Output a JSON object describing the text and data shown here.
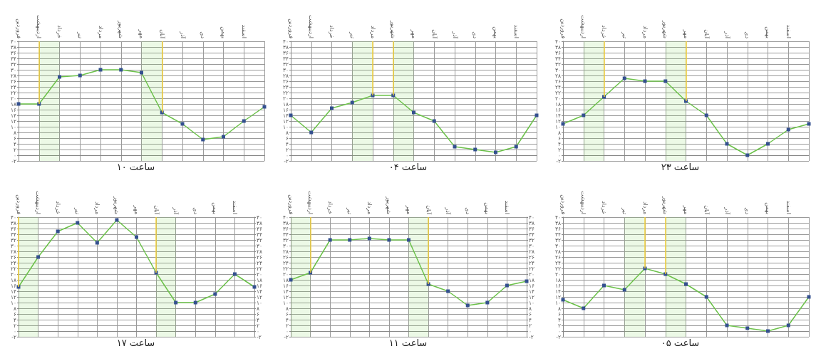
{
  "chart_data": [
    {
      "type": "line",
      "title": "ساعت ۱۰",
      "categories": [
        "فروردین",
        "اردیبهشت",
        "خرداد",
        "تیر",
        "مرداد",
        "شهریور",
        "مهر",
        "آبان",
        "آذر",
        "دی",
        "بهمن",
        "اسفند",
        null
      ],
      "series": [
        {
          "color": "#6cc24a",
          "values": [
            18,
            18,
            27.5,
            28,
            30,
            30,
            29,
            15,
            11,
            5.5,
            6.5,
            12,
            17
          ]
        }
      ],
      "ylim": [
        -2,
        40
      ],
      "yticks": [
        {
          "value": -2,
          "label": "-۲"
        },
        {
          "value": 0,
          "label": "۰"
        },
        {
          "value": 2,
          "label": "۲"
        },
        {
          "value": 4,
          "label": "۴"
        },
        {
          "value": 6,
          "label": "۶"
        },
        {
          "value": 8,
          "label": "۸"
        },
        {
          "value": 10,
          "label": "۱۰"
        },
        {
          "value": 12,
          "label": "۱۲"
        },
        {
          "value": 14,
          "label": "۱۴"
        },
        {
          "value": 16,
          "label": "۱۶"
        },
        {
          "value": 18,
          "label": "۱۸"
        },
        {
          "value": 20,
          "label": "۲۰"
        },
        {
          "value": 22,
          "label": "۲۲"
        },
        {
          "value": 24,
          "label": "۲۴"
        },
        {
          "value": 26,
          "label": "۲۶"
        },
        {
          "value": 28,
          "label": "۲۸"
        },
        {
          "value": 30,
          "label": "۳۰"
        },
        {
          "value": 32,
          "label": "۳۲"
        },
        {
          "value": 34,
          "label": "۳۴"
        },
        {
          "value": 36,
          "label": "۳۶"
        },
        {
          "value": 38,
          "label": "۳۸"
        },
        {
          "value": 40,
          "label": "۴۰"
        }
      ],
      "bands": [
        {
          "axis": "x",
          "from": "اردیبهشت",
          "to": "خرداد",
          "color": "#7ed957"
        },
        {
          "axis": "x",
          "from": "مهر",
          "to": "آبان",
          "color": "#7ed957"
        }
      ],
      "ref_lines": [
        {
          "axis": "x",
          "value": "اردیبهشت",
          "color": "#f2cf3a"
        },
        {
          "axis": "x",
          "value": "آبان",
          "color": "#f2cf3a"
        }
      ],
      "grid": true,
      "marker": "square"
    },
    {
      "type": "line",
      "title": "ساعت ۰۴",
      "categories": [
        "فروردین",
        "اردیبهشت",
        "خرداد",
        "تیر",
        "مرداد",
        "شهریور",
        "مهر",
        "آبان",
        "آذر",
        "دی",
        "بهمن",
        "اسفند",
        null
      ],
      "series": [
        {
          "color": "#6cc24a",
          "values": [
            14,
            8,
            16.5,
            18.5,
            21,
            21,
            15,
            12,
            3,
            2,
            1,
            3,
            14
          ]
        }
      ],
      "ylim": [
        -2,
        40
      ],
      "yticks": [
        {
          "value": -2,
          "label": "-۲"
        },
        {
          "value": 0,
          "label": "۰"
        },
        {
          "value": 2,
          "label": "۲"
        },
        {
          "value": 4,
          "label": "۴"
        },
        {
          "value": 6,
          "label": "۶"
        },
        {
          "value": 8,
          "label": "۸"
        },
        {
          "value": 10,
          "label": "۱۰"
        },
        {
          "value": 12,
          "label": "۱۲"
        },
        {
          "value": 14,
          "label": "۱۴"
        },
        {
          "value": 16,
          "label": "۱۶"
        },
        {
          "value": 18,
          "label": "۱۸"
        },
        {
          "value": 20,
          "label": "۲۰"
        },
        {
          "value": 22,
          "label": "۲۲"
        },
        {
          "value": 24,
          "label": "۲۴"
        },
        {
          "value": 26,
          "label": "۲۶"
        },
        {
          "value": 28,
          "label": "۲۸"
        },
        {
          "value": 30,
          "label": "۳۰"
        },
        {
          "value": 32,
          "label": "۳۲"
        },
        {
          "value": 34,
          "label": "۳۴"
        },
        {
          "value": 36,
          "label": "۳۶"
        },
        {
          "value": 38,
          "label": "۳۸"
        },
        {
          "value": 40,
          "label": "۴۰"
        }
      ],
      "bands": [
        {
          "axis": "x",
          "from": "تیر",
          "to": "مرداد",
          "color": "#7ed957"
        },
        {
          "axis": "x",
          "from": "شهریور",
          "to": "مهر",
          "color": "#7ed957"
        }
      ],
      "ref_lines": [
        {
          "axis": "x",
          "value": "مرداد",
          "color": "#f2cf3a"
        },
        {
          "axis": "x",
          "value": "شهریور",
          "color": "#f2cf3a"
        }
      ],
      "grid": true,
      "marker": "square"
    },
    {
      "type": "line",
      "title": "ساعت ۲۳",
      "categories": [
        "فروردین",
        "اردیبهشت",
        "خرداد",
        "تیر",
        "مرداد",
        "شهریور",
        "مهر",
        "آبان",
        "آذر",
        "دی",
        "بهمن",
        "اسفند",
        null
      ],
      "series": [
        {
          "color": "#6cc24a",
          "values": [
            11,
            14,
            20.5,
            27,
            26,
            26,
            19,
            14,
            4,
            0,
            4,
            9,
            11
          ]
        }
      ],
      "ylim": [
        -2,
        40
      ],
      "yticks": [
        {
          "value": -2,
          "label": "-۲"
        },
        {
          "value": 0,
          "label": "۰"
        },
        {
          "value": 2,
          "label": "۲"
        },
        {
          "value": 4,
          "label": "۴"
        },
        {
          "value": 6,
          "label": "۶"
        },
        {
          "value": 8,
          "label": "۸"
        },
        {
          "value": 10,
          "label": "۱۰"
        },
        {
          "value": 12,
          "label": "۱۲"
        },
        {
          "value": 14,
          "label": "۱۴"
        },
        {
          "value": 16,
          "label": "۱۶"
        },
        {
          "value": 18,
          "label": "۱۸"
        },
        {
          "value": 20,
          "label": "۲۰"
        },
        {
          "value": 22,
          "label": "۲۲"
        },
        {
          "value": 24,
          "label": "۲۴"
        },
        {
          "value": 26,
          "label": "۲۶"
        },
        {
          "value": 28,
          "label": "۲۸"
        },
        {
          "value": 30,
          "label": "۳۰"
        },
        {
          "value": 32,
          "label": "۳۲"
        },
        {
          "value": 34,
          "label": "۳۴"
        },
        {
          "value": 36,
          "label": "۳۶"
        },
        {
          "value": 38,
          "label": "۳۸"
        },
        {
          "value": 40,
          "label": "۴۰"
        }
      ],
      "bands": [
        {
          "axis": "x",
          "from": "اردیبهشت",
          "to": "خرداد",
          "color": "#7ed957"
        },
        {
          "axis": "x",
          "from": "شهریور",
          "to": "مهر",
          "color": "#7ed957"
        }
      ],
      "ref_lines": [
        {
          "axis": "x",
          "value": "خرداد",
          "color": "#f2cf3a"
        },
        {
          "axis": "x",
          "value": "مهر",
          "color": "#f2cf3a"
        }
      ],
      "grid": true,
      "marker": "square"
    },
    {
      "type": "line",
      "title": "ساعت ۱۷",
      "categories": [
        "فروردین",
        "اردیبهشت",
        "خرداد",
        "تیر",
        "مرداد",
        "شهریور",
        "مهر",
        "آبان",
        "آذر",
        "دی",
        "بهمن",
        "اسفند",
        null
      ],
      "series": [
        {
          "color": "#6cc24a",
          "values": [
            15.5,
            26,
            35,
            38,
            31,
            39,
            33,
            20.5,
            10,
            10,
            13,
            20,
            15.5
          ]
        }
      ],
      "ylim": [
        -2,
        40
      ],
      "yticks": [
        {
          "value": -2,
          "label": "-۲"
        },
        {
          "value": 0,
          "label": "۰"
        },
        {
          "value": 2,
          "label": "۲"
        },
        {
          "value": 4,
          "label": "۴"
        },
        {
          "value": 6,
          "label": "۶"
        },
        {
          "value": 8,
          "label": "۸"
        },
        {
          "value": 10,
          "label": "۱۰"
        },
        {
          "value": 12,
          "label": "۱۲"
        },
        {
          "value": 14,
          "label": "۱۴"
        },
        {
          "value": 16,
          "label": "۱۶"
        },
        {
          "value": 18,
          "label": "۱۸"
        },
        {
          "value": 20,
          "label": "۲۰"
        },
        {
          "value": 22,
          "label": "۲۲"
        },
        {
          "value": 24,
          "label": "۲۴"
        },
        {
          "value": 26,
          "label": "۲۶"
        },
        {
          "value": 28,
          "label": "۲۸"
        },
        {
          "value": 30,
          "label": "۳۰"
        },
        {
          "value": 32,
          "label": "۳۲"
        },
        {
          "value": 34,
          "label": "۳۴"
        },
        {
          "value": 36,
          "label": "۳۶"
        },
        {
          "value": 38,
          "label": "۳۸"
        },
        {
          "value": 40,
          "label": "۴۰"
        }
      ],
      "y2lim": [
        -2,
        40
      ],
      "y2ticks": [
        {
          "value": -2,
          "label": "-۲"
        },
        {
          "value": 0,
          "label": "۰"
        },
        {
          "value": 2,
          "label": "۲"
        },
        {
          "value": 4,
          "label": "۴"
        },
        {
          "value": 6,
          "label": "۶"
        },
        {
          "value": 8,
          "label": "۸"
        },
        {
          "value": 10,
          "label": "۱۰"
        },
        {
          "value": 12,
          "label": "۱۲"
        },
        {
          "value": 14,
          "label": "۱۴"
        },
        {
          "value": 16,
          "label": "۱۶"
        },
        {
          "value": 18,
          "label": "۱۸"
        },
        {
          "value": 20,
          "label": "۲۰"
        },
        {
          "value": 22,
          "label": "۲۲"
        },
        {
          "value": 24,
          "label": "۲۴"
        },
        {
          "value": 26,
          "label": "۲۶"
        },
        {
          "value": 28,
          "label": "۲۸"
        },
        {
          "value": 30,
          "label": "۳۰"
        },
        {
          "value": 32,
          "label": "۳۲"
        },
        {
          "value": 34,
          "label": "۳۴"
        },
        {
          "value": 36,
          "label": "۳۶"
        },
        {
          "value": 38,
          "label": "۳۸"
        },
        {
          "value": 40,
          "label": "۴۰"
        }
      ],
      "bands": [
        {
          "axis": "x",
          "from": "فروردین",
          "to": "اردیبهشت",
          "color": "#7ed957"
        },
        {
          "axis": "x",
          "from": "آبان",
          "to": "آذر",
          "color": "#7ed957"
        }
      ],
      "ref_lines": [
        {
          "axis": "x",
          "value": "فروردین",
          "color": "#f2cf3a"
        },
        {
          "axis": "x",
          "value": "آبان",
          "color": "#f2cf3a"
        }
      ],
      "grid": true,
      "marker": "square"
    },
    {
      "type": "line",
      "title": "ساعت ۱۱",
      "categories": [
        "فروردین",
        "اردیبهشت",
        "خرداد",
        "تیر",
        "مرداد",
        "شهریور",
        "مهر",
        "آبان",
        "آذر",
        "دی",
        "بهمن",
        "اسفند",
        null
      ],
      "series": [
        {
          "color": "#6cc24a",
          "values": [
            18,
            20.5,
            32,
            32,
            32.5,
            32,
            32,
            16.5,
            14,
            9,
            10,
            16,
            17.5
          ]
        }
      ],
      "ylim": [
        -2,
        40
      ],
      "yticks": [
        {
          "value": -2,
          "label": "-۲"
        },
        {
          "value": 0,
          "label": "۰"
        },
        {
          "value": 2,
          "label": "۲"
        },
        {
          "value": 4,
          "label": "۴"
        },
        {
          "value": 6,
          "label": "۶"
        },
        {
          "value": 8,
          "label": "۸"
        },
        {
          "value": 10,
          "label": "۱۰"
        },
        {
          "value": 12,
          "label": "۱۲"
        },
        {
          "value": 14,
          "label": "۱۴"
        },
        {
          "value": 16,
          "label": "۱۶"
        },
        {
          "value": 18,
          "label": "۱۸"
        },
        {
          "value": 20,
          "label": "۲۰"
        },
        {
          "value": 22,
          "label": "۲۲"
        },
        {
          "value": 24,
          "label": "۲۴"
        },
        {
          "value": 26,
          "label": "۲۶"
        },
        {
          "value": 28,
          "label": "۲۸"
        },
        {
          "value": 30,
          "label": "۳۰"
        },
        {
          "value": 32,
          "label": "۳۲"
        },
        {
          "value": 34,
          "label": "۳۴"
        },
        {
          "value": 36,
          "label": "۳۶"
        },
        {
          "value": 38,
          "label": "۳۸"
        },
        {
          "value": 40,
          "label": "۴۰"
        }
      ],
      "y2lim": [
        -2,
        40
      ],
      "y2ticks": [
        {
          "value": -2,
          "label": "-۲"
        },
        {
          "value": 0,
          "label": "۰"
        },
        {
          "value": 2,
          "label": "۲"
        },
        {
          "value": 4,
          "label": "۴"
        },
        {
          "value": 6,
          "label": "۶"
        },
        {
          "value": 8,
          "label": "۸"
        },
        {
          "value": 10,
          "label": "۱۰"
        },
        {
          "value": 12,
          "label": "۱۲"
        },
        {
          "value": 14,
          "label": "۱۴"
        },
        {
          "value": 16,
          "label": "۱۶"
        },
        {
          "value": 18,
          "label": "۱۸"
        },
        {
          "value": 20,
          "label": "۲۰"
        },
        {
          "value": 22,
          "label": "۲۲"
        },
        {
          "value": 24,
          "label": "۲۴"
        },
        {
          "value": 26,
          "label": "۲۶"
        },
        {
          "value": 28,
          "label": "۲۸"
        },
        {
          "value": 30,
          "label": "۳۰"
        },
        {
          "value": 32,
          "label": "۳۲"
        },
        {
          "value": 34,
          "label": "۳۴"
        },
        {
          "value": 36,
          "label": "۳۶"
        },
        {
          "value": 38,
          "label": "۳۸"
        },
        {
          "value": 40,
          "label": "۴۰"
        }
      ],
      "bands": [
        {
          "axis": "x",
          "from": "فروردین",
          "to": "اردیبهشت",
          "color": "#7ed957"
        },
        {
          "axis": "x",
          "from": "مهر",
          "to": "آبان",
          "color": "#7ed957"
        }
      ],
      "ref_lines": [
        {
          "axis": "x",
          "value": "اردیبهشت",
          "color": "#f2cf3a"
        },
        {
          "axis": "x",
          "value": "آبان",
          "color": "#f2cf3a"
        }
      ],
      "grid": true,
      "marker": "square"
    },
    {
      "type": "line",
      "title": "ساعت ۰۵",
      "categories": [
        "فروردین",
        "اردیبهشت",
        "خرداد",
        "تیر",
        "مرداد",
        "شهریور",
        "مهر",
        "آبان",
        "آذر",
        "دی",
        "بهمن",
        "اسفند",
        null
      ],
      "series": [
        {
          "color": "#6cc24a",
          "values": [
            11,
            8,
            16,
            14.5,
            22,
            20,
            16.5,
            12,
            2,
            1,
            0,
            2,
            12
          ]
        }
      ],
      "ylim": [
        -2,
        40
      ],
      "yticks": [
        {
          "value": -2,
          "label": "-۲"
        },
        {
          "value": 0,
          "label": "۰"
        },
        {
          "value": 2,
          "label": "۲"
        },
        {
          "value": 4,
          "label": "۴"
        },
        {
          "value": 6,
          "label": "۶"
        },
        {
          "value": 8,
          "label": "۸"
        },
        {
          "value": 10,
          "label": "۱۰"
        },
        {
          "value": 12,
          "label": "۱۲"
        },
        {
          "value": 14,
          "label": "۱۴"
        },
        {
          "value": 16,
          "label": "۱۶"
        },
        {
          "value": 18,
          "label": "۱۸"
        },
        {
          "value": 20,
          "label": "۲۰"
        },
        {
          "value": 22,
          "label": "۲۲"
        },
        {
          "value": 24,
          "label": "۲۴"
        },
        {
          "value": 26,
          "label": "۲۶"
        },
        {
          "value": 28,
          "label": "۲۸"
        },
        {
          "value": 30,
          "label": "۳۰"
        },
        {
          "value": 32,
          "label": "۳۲"
        },
        {
          "value": 34,
          "label": "۳۴"
        },
        {
          "value": 36,
          "label": "۳۶"
        },
        {
          "value": 38,
          "label": "۳۸"
        },
        {
          "value": 40,
          "label": "۴۰"
        }
      ],
      "bands": [
        {
          "axis": "x",
          "from": "تیر",
          "to": "مرداد",
          "color": "#7ed957"
        },
        {
          "axis": "x",
          "from": "شهریور",
          "to": "مهر",
          "color": "#7ed957"
        }
      ],
      "ref_lines": [
        {
          "axis": "x",
          "value": "مرداد",
          "color": "#f2cf3a"
        },
        {
          "axis": "x",
          "value": "شهریور",
          "color": "#f2cf3a"
        }
      ],
      "grid": true,
      "marker": "square"
    }
  ]
}
